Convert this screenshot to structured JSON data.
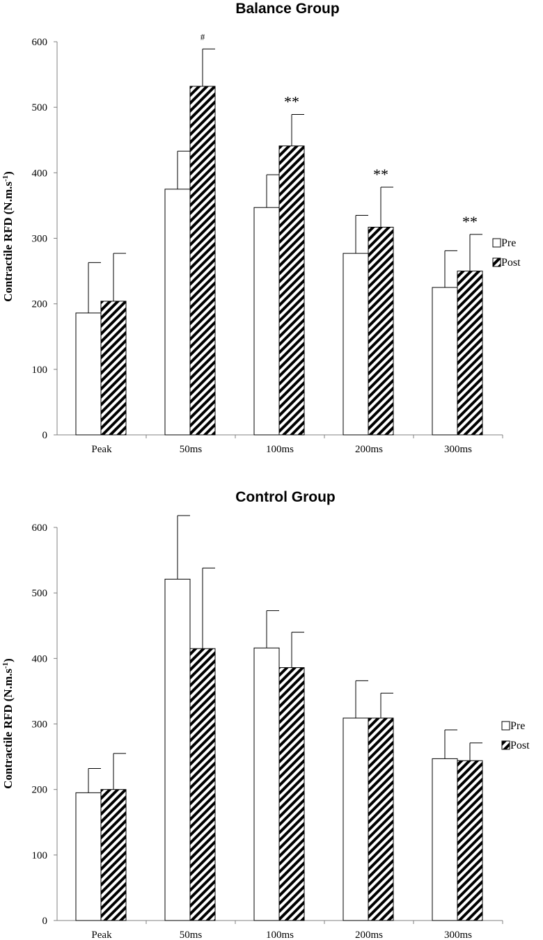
{
  "chart_data": [
    {
      "type": "bar",
      "title": "Balance Group",
      "ylabel": "Contractile RFD (N.m.s-1)",
      "ylabel_main": "Contractile RFD (N.m.s",
      "ylabel_sup": "-1",
      "ylabel_tail": ")",
      "ylim": [
        0,
        600
      ],
      "yticks": [
        "0",
        "100",
        "200",
        "300",
        "400",
        "500",
        "600"
      ],
      "categories": [
        "Peak",
        "50ms",
        "100ms",
        "200ms",
        "300ms"
      ],
      "series": [
        {
          "name": "Pre",
          "values": [
            186,
            375,
            347,
            277,
            225
          ],
          "errors": [
            77,
            58,
            50,
            58,
            56
          ]
        },
        {
          "name": "Post",
          "values": [
            204,
            532,
            441,
            317,
            250
          ],
          "errors": [
            73,
            57,
            48,
            61,
            56
          ]
        }
      ],
      "annotations": [
        "",
        "#",
        "**",
        "**",
        "**"
      ],
      "legend": [
        "Pre",
        "Post"
      ],
      "legend_position": "right",
      "grid": false
    },
    {
      "type": "bar",
      "title": "Control Group",
      "ylabel": "Contractile RFD (N.m.s-1)",
      "ylabel_main": "Contractile RFD (N.m.s",
      "ylabel_sup": "-1",
      "ylabel_tail": ")",
      "ylim": [
        0,
        600
      ],
      "yticks": [
        "0",
        "100",
        "200",
        "300",
        "400",
        "500",
        "600"
      ],
      "categories": [
        "Peak",
        "50ms",
        "100ms",
        "200ms",
        "300ms"
      ],
      "series": [
        {
          "name": "Pre",
          "values": [
            195,
            521,
            416,
            309,
            247
          ],
          "errors": [
            37,
            97,
            57,
            57,
            44
          ]
        },
        {
          "name": "Post",
          "values": [
            200,
            415,
            386,
            309,
            244
          ],
          "errors": [
            55,
            123,
            54,
            38,
            27
          ]
        }
      ],
      "annotations": [
        "",
        "",
        "",
        "",
        ""
      ],
      "legend": [
        "Pre",
        "Post"
      ],
      "legend_position": "right",
      "grid": false
    }
  ]
}
